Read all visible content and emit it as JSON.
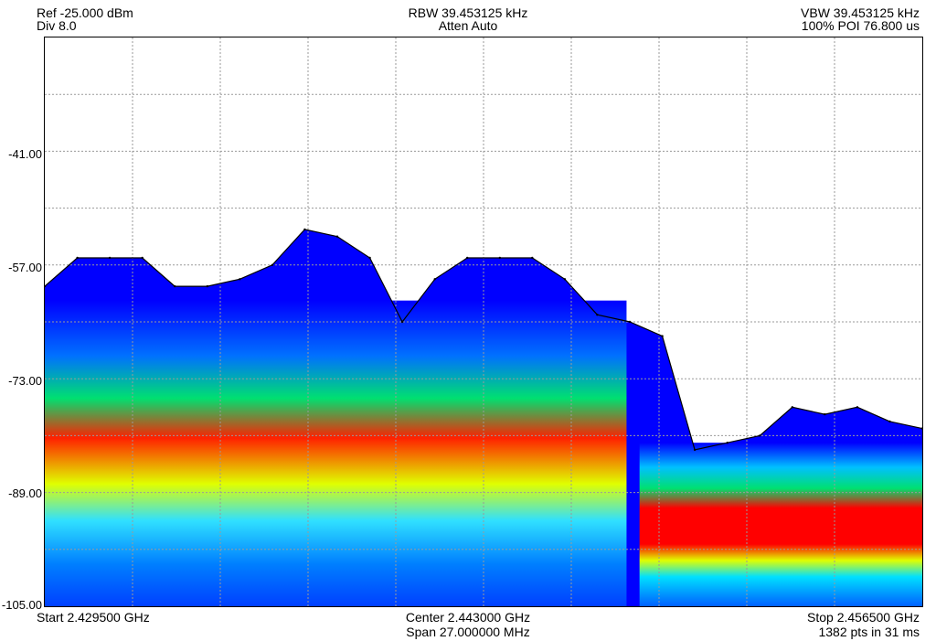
{
  "header": {
    "ref": "Ref -25.000 dBm",
    "div": "Div 8.0",
    "rbw": "RBW 39.453125 kHz",
    "atten": "Atten Auto",
    "vbw": "VBW 39.453125 kHz",
    "poi": "100% POI 76.800 us"
  },
  "footer": {
    "start": "Start 2.429500 GHz",
    "center": "Center 2.443000 GHz",
    "span": "Span 27.000000 MHz",
    "stop": "Stop 2.456500 GHz",
    "points": "1382 pts in 31 ms"
  },
  "y_ticks": [
    "-41.00",
    "-57.00",
    "-73.00",
    "-89.00",
    "-105.00"
  ],
  "colors": {
    "plot_bg": "#ffffff",
    "grid": "#9a9a9a",
    "trace": "#000000",
    "peak_cloud": "#0000ff",
    "density_low": "#0050ff",
    "density_mid": "#00e080",
    "density_high": "#ff0000"
  },
  "chart_data": {
    "type": "line",
    "subtype": "persistence spectrum (real-time spectrum analyzer)",
    "title": "",
    "xlabel": "",
    "ylabel": "",
    "x_unit": "GHz",
    "y_unit": "dBm",
    "xlim": [
      2.4295,
      2.4565
    ],
    "ylim": [
      -105,
      -25
    ],
    "y_divisions": 10,
    "x_divisions": 10,
    "grid": true,
    "series": [
      {
        "x": [
          2.4295,
          2.4305,
          2.4315,
          2.4325,
          2.4335,
          2.4345,
          2.4355,
          2.4365,
          2.4375,
          2.4385,
          2.4395,
          2.4405,
          2.4415,
          2.4425,
          2.4435,
          2.4445,
          2.4455,
          2.4465,
          2.4475,
          2.4485,
          2.4495,
          2.4505,
          2.4515,
          2.4525,
          2.4535,
          2.4545,
          2.4555,
          2.4565
        ],
        "values": [
          -60,
          -56,
          -56,
          -56,
          -60,
          -60,
          -59,
          -57,
          -52,
          -53,
          -56,
          -65,
          -59,
          -56,
          -56,
          -56,
          -59,
          -64,
          -65,
          -67,
          -83,
          -82,
          -81,
          -77,
          -78,
          -77,
          -79,
          -80
        ]
      }
    ]
  }
}
